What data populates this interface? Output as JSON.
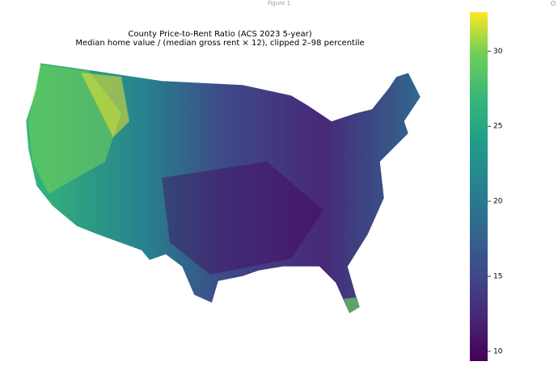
{
  "window_title": "Figure 1",
  "chart_data": {
    "type": "choropleth",
    "title": "County Price-to-Rent Ratio (ACS 2023 5-year)",
    "subtitle": "Median home value / (median gross rent × 12), clipped 2–98 percentile",
    "colormap": "viridis",
    "clim": [
      9.35,
      32.6
    ],
    "cticks": [
      10,
      15,
      20,
      25,
      30
    ]
  }
}
